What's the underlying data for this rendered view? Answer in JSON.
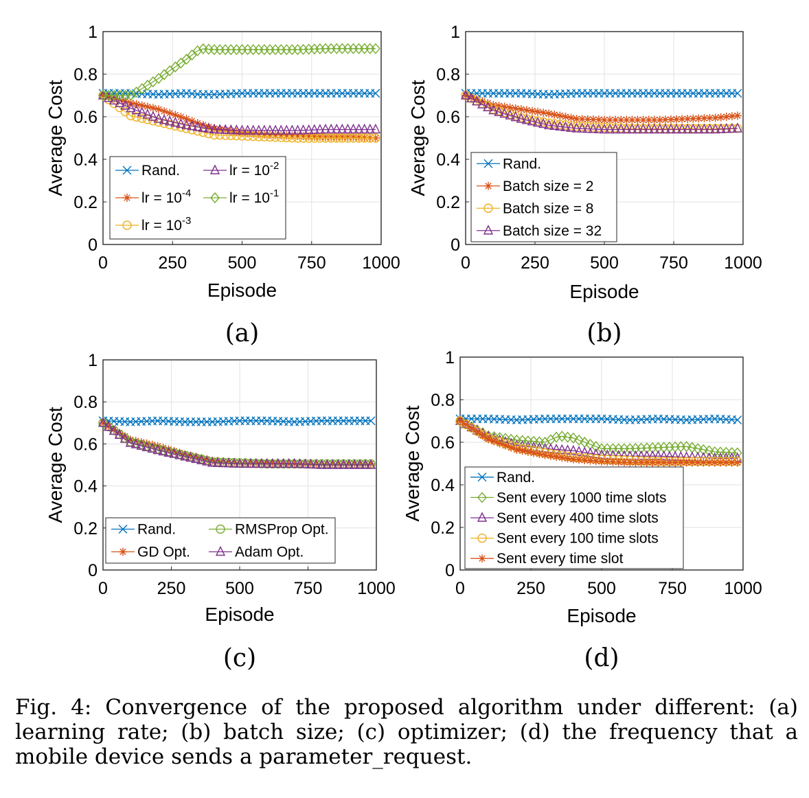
{
  "caption": "Fig. 4: Convergence of the proposed algorithm under different: (a) learning rate; (b) batch size; (c) optimizer; (d) the frequency that a mobile device sends a parameter_request.",
  "colors": {
    "blue": "#0072BD",
    "orange": "#D95319",
    "yellow": "#EDB120",
    "purple": "#7E2F8E",
    "green": "#77AC30"
  },
  "chart_data": [
    {
      "panel": "(a)",
      "type": "line",
      "xlabel": "Episode",
      "ylabel": "Average Cost",
      "xlim": [
        0,
        1000
      ],
      "ylim": [
        0,
        1
      ],
      "xticks": [
        "0",
        "250",
        "500",
        "750",
        "1000"
      ],
      "yticks": [
        "0",
        "0.2",
        "0.4",
        "0.6",
        "0.8",
        "1"
      ],
      "legend_position": "bottom-left",
      "legend_columns": 2,
      "x": [
        0,
        100,
        200,
        300,
        350,
        400,
        500,
        600,
        700,
        800,
        900,
        980
      ],
      "series": [
        {
          "name": "Rand.",
          "marker": "x",
          "color": "#0072BD",
          "values": [
            0.71,
            0.71,
            0.705,
            0.71,
            0.705,
            0.705,
            0.71,
            0.71,
            0.71,
            0.71,
            0.71,
            0.71
          ]
        },
        {
          "name": "lr = 10^-4",
          "label_base": "lr = 10",
          "label_exp": "-4",
          "marker": "asterisk",
          "color": "#D95319",
          "values": [
            0.7,
            0.665,
            0.635,
            0.59,
            0.565,
            0.545,
            0.525,
            0.515,
            0.51,
            0.505,
            0.505,
            0.5
          ]
        },
        {
          "name": "lr = 10^-3",
          "label_base": "lr = 10",
          "label_exp": "-3",
          "marker": "circle",
          "color": "#EDB120",
          "values": [
            0.7,
            0.605,
            0.575,
            0.545,
            0.53,
            0.515,
            0.51,
            0.505,
            0.5,
            0.5,
            0.5,
            0.5
          ]
        },
        {
          "name": "lr = 10^-2",
          "label_base": "lr = 10",
          "label_exp": "-2",
          "marker": "triangle",
          "color": "#7E2F8E",
          "values": [
            0.7,
            0.64,
            0.59,
            0.56,
            0.55,
            0.54,
            0.535,
            0.535,
            0.535,
            0.54,
            0.54,
            0.54
          ]
        },
        {
          "name": "lr = 10^-1",
          "label_base": "lr = 10",
          "label_exp": "-1",
          "marker": "diamond",
          "color": "#77AC30",
          "values": [
            0.7,
            0.7,
            0.78,
            0.87,
            0.92,
            0.915,
            0.915,
            0.915,
            0.915,
            0.92,
            0.92,
            0.92
          ]
        }
      ]
    },
    {
      "panel": "(b)",
      "type": "line",
      "xlabel": "Episode",
      "ylabel": "Average Cost",
      "xlim": [
        0,
        1000
      ],
      "ylim": [
        0,
        1
      ],
      "xticks": [
        "0",
        "250",
        "500",
        "750",
        "1000"
      ],
      "yticks": [
        "0",
        "0.2",
        "0.4",
        "0.6",
        "0.8",
        "1"
      ],
      "legend_position": "bottom-left",
      "legend_columns": 1,
      "x": [
        0,
        100,
        200,
        300,
        400,
        500,
        600,
        700,
        800,
        900,
        980
      ],
      "series": [
        {
          "name": "Rand.",
          "marker": "x",
          "color": "#0072BD",
          "values": [
            0.71,
            0.71,
            0.71,
            0.705,
            0.71,
            0.71,
            0.71,
            0.71,
            0.71,
            0.71,
            0.71
          ]
        },
        {
          "name": "Batch size = 2",
          "marker": "asterisk",
          "color": "#D95319",
          "values": [
            0.7,
            0.655,
            0.635,
            0.615,
            0.59,
            0.585,
            0.585,
            0.585,
            0.59,
            0.595,
            0.605
          ]
        },
        {
          "name": "Batch size = 8",
          "marker": "circle",
          "color": "#EDB120",
          "values": [
            0.7,
            0.635,
            0.595,
            0.57,
            0.555,
            0.55,
            0.545,
            0.545,
            0.545,
            0.545,
            0.545
          ]
        },
        {
          "name": "Batch size = 32",
          "marker": "triangle",
          "color": "#7E2F8E",
          "values": [
            0.7,
            0.63,
            0.59,
            0.56,
            0.545,
            0.54,
            0.54,
            0.54,
            0.54,
            0.54,
            0.545
          ]
        }
      ]
    },
    {
      "panel": "(c)",
      "type": "line",
      "xlabel": "Episode",
      "ylabel": "Average Cost",
      "xlim": [
        0,
        1000
      ],
      "ylim": [
        0,
        1
      ],
      "xticks": [
        "0",
        "250",
        "500",
        "750",
        "1000"
      ],
      "yticks": [
        "0",
        "0.2",
        "0.4",
        "0.6",
        "0.8",
        "1"
      ],
      "legend_position": "bottom-left",
      "legend_columns": 2,
      "x": [
        0,
        100,
        200,
        300,
        400,
        500,
        600,
        700,
        800,
        900,
        980
      ],
      "series": [
        {
          "name": "Rand.",
          "marker": "x",
          "color": "#0072BD",
          "values": [
            0.71,
            0.705,
            0.71,
            0.705,
            0.705,
            0.71,
            0.71,
            0.705,
            0.71,
            0.71,
            0.71
          ]
        },
        {
          "name": "GD Opt.",
          "marker": "asterisk",
          "color": "#D95319",
          "values": [
            0.7,
            0.62,
            0.59,
            0.55,
            0.52,
            0.51,
            0.51,
            0.505,
            0.505,
            0.505,
            0.505
          ]
        },
        {
          "name": "RMSProp Opt.",
          "marker": "circle",
          "color": "#77AC30",
          "values": [
            0.7,
            0.61,
            0.575,
            0.545,
            0.515,
            0.51,
            0.505,
            0.505,
            0.505,
            0.505,
            0.505
          ]
        },
        {
          "name": "Adam Opt.",
          "marker": "triangle",
          "color": "#7E2F8E",
          "values": [
            0.7,
            0.605,
            0.57,
            0.54,
            0.51,
            0.505,
            0.505,
            0.505,
            0.5,
            0.5,
            0.5
          ]
        }
      ]
    },
    {
      "panel": "(d)",
      "type": "line",
      "xlabel": "Episode",
      "ylabel": "Average Cost",
      "xlim": [
        0,
        1000
      ],
      "ylim": [
        0,
        1
      ],
      "xticks": [
        "0",
        "250",
        "500",
        "750",
        "1000"
      ],
      "yticks": [
        "0",
        "0.2",
        "0.4",
        "0.6",
        "0.8",
        "1"
      ],
      "legend_position": "bottom-left",
      "legend_columns": 1,
      "x": [
        0,
        100,
        200,
        300,
        350,
        400,
        500,
        600,
        700,
        800,
        900,
        980
      ],
      "series": [
        {
          "name": "Rand.",
          "marker": "x",
          "color": "#0072BD",
          "values": [
            0.71,
            0.71,
            0.705,
            0.71,
            0.71,
            0.71,
            0.71,
            0.705,
            0.71,
            0.705,
            0.71,
            0.705
          ]
        },
        {
          "name": "Sent every 1000 time slots",
          "marker": "diamond",
          "color": "#77AC30",
          "values": [
            0.7,
            0.63,
            0.61,
            0.6,
            0.63,
            0.62,
            0.57,
            0.57,
            0.575,
            0.58,
            0.555,
            0.55
          ]
        },
        {
          "name": "Sent every 400 time slots",
          "marker": "triangle",
          "color": "#7E2F8E",
          "values": [
            0.7,
            0.625,
            0.585,
            0.57,
            0.565,
            0.56,
            0.54,
            0.535,
            0.535,
            0.53,
            0.525,
            0.525
          ]
        },
        {
          "name": "Sent every 100 time slots",
          "marker": "circle",
          "color": "#EDB120",
          "values": [
            0.7,
            0.62,
            0.575,
            0.55,
            0.54,
            0.53,
            0.52,
            0.515,
            0.51,
            0.51,
            0.51,
            0.51
          ]
        },
        {
          "name": "Sent every time slot",
          "marker": "asterisk",
          "color": "#D95319",
          "values": [
            0.7,
            0.615,
            0.565,
            0.54,
            0.53,
            0.52,
            0.51,
            0.505,
            0.505,
            0.505,
            0.505,
            0.505
          ]
        }
      ]
    }
  ]
}
